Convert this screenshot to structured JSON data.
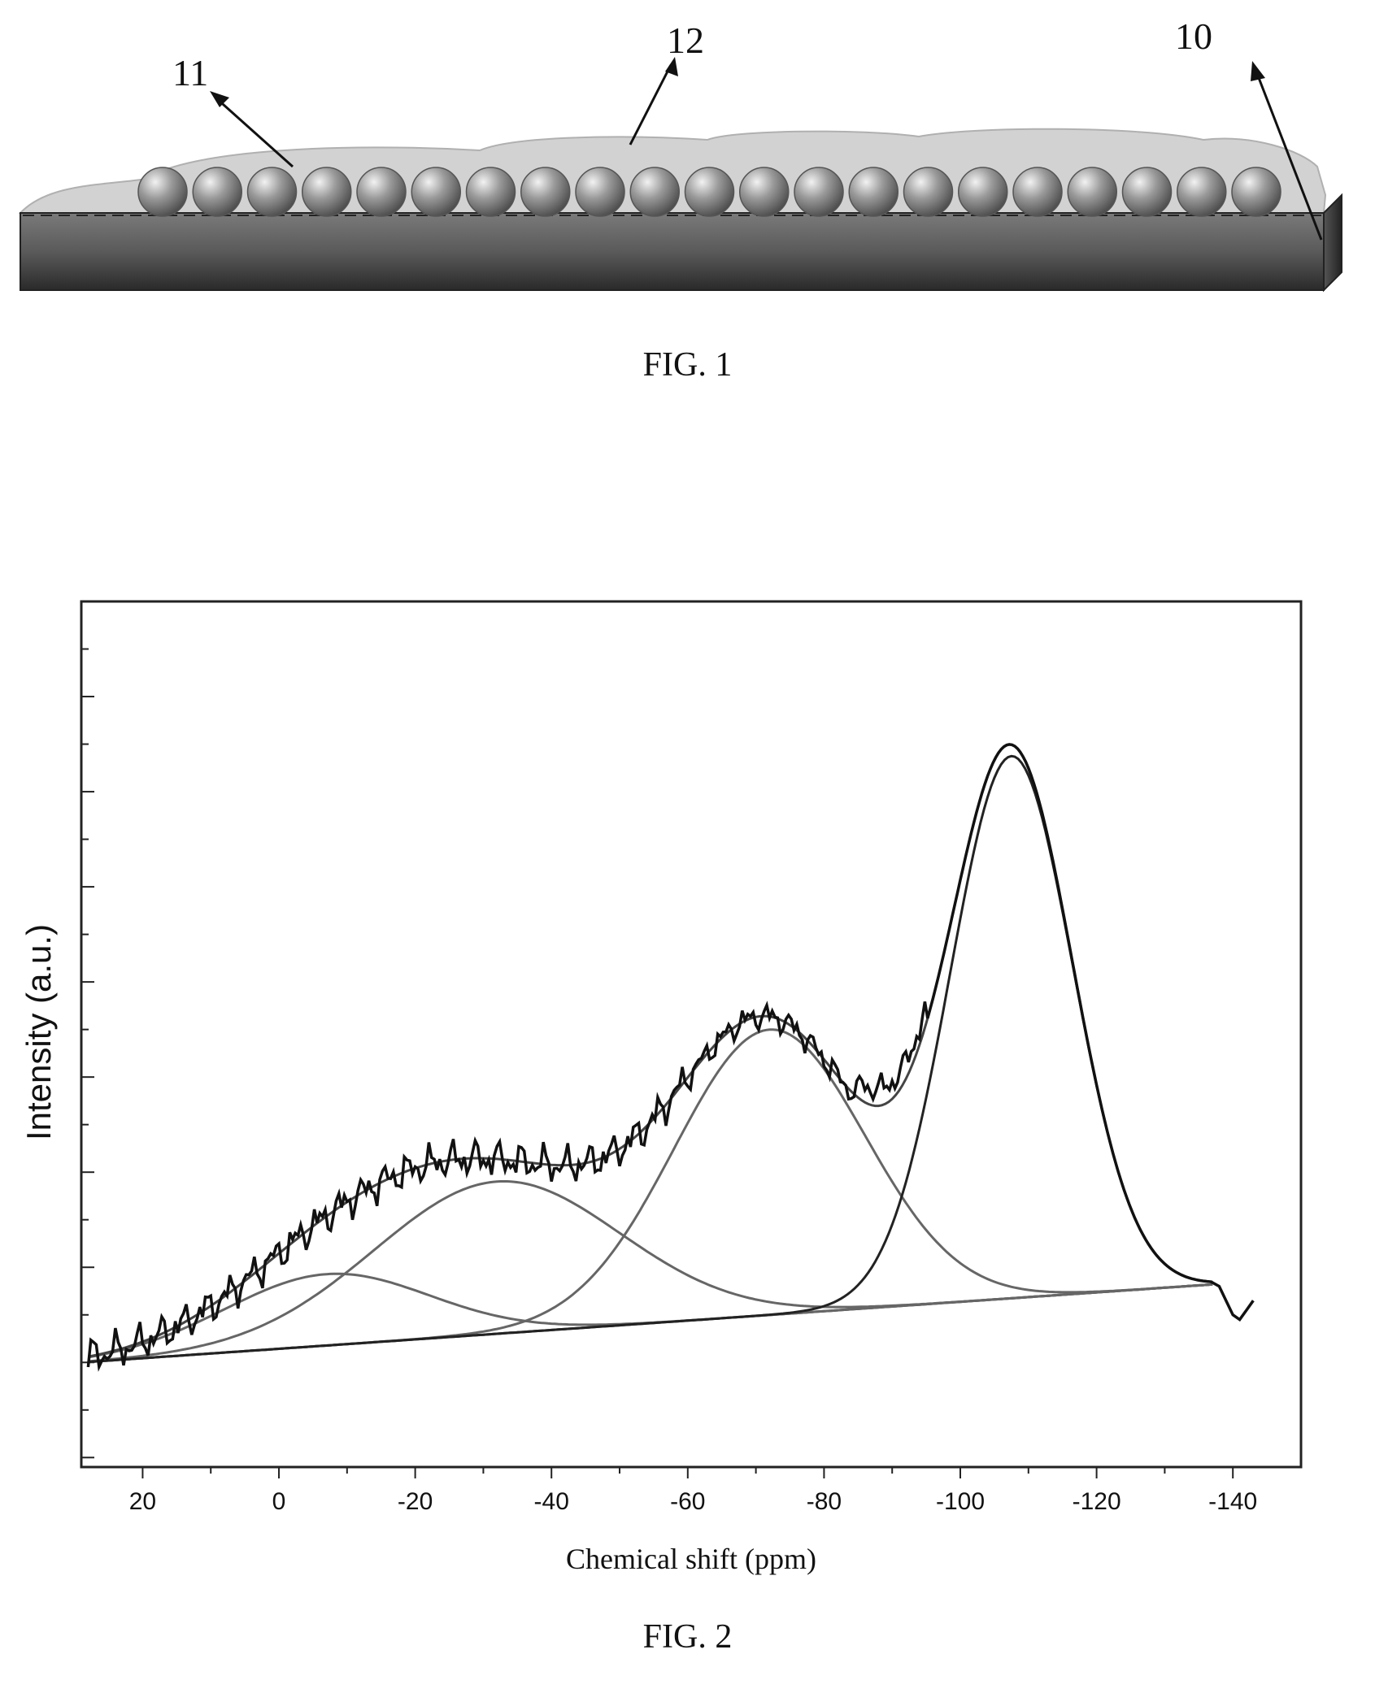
{
  "figure1": {
    "caption": "FIG. 1",
    "reference_labels": [
      "11",
      "12",
      "10"
    ],
    "sphere_count": 21
  },
  "figure2": {
    "caption": "FIG. 2"
  },
  "chart_data": {
    "type": "line",
    "title": "",
    "xlabel": "Chemical shift (ppm)",
    "ylabel": "Intensity (a.u.)",
    "xlim": [
      29,
      -150
    ],
    "ylim": [
      -1.1,
      8.0
    ],
    "x_ticks": [
      20,
      0,
      -20,
      -40,
      -60,
      -80,
      -100,
      -120,
      -140
    ],
    "x_tick_labels": [
      "20",
      "0",
      "-20",
      "-40",
      "-60",
      "-80",
      "-100",
      "-120",
      "-140"
    ],
    "baseline": {
      "x": [
        29,
        -137
      ],
      "y": [
        0,
        0.82
      ]
    },
    "fitted_peaks": [
      {
        "center": -7,
        "height": 0.75,
        "width": 15
      },
      {
        "center": -32,
        "height": 1.6,
        "width": 18
      },
      {
        "center": -72,
        "height": 3.0,
        "width": 14
      },
      {
        "center": -107.5,
        "height": 5.7,
        "width": 9
      }
    ],
    "experimental_max": {
      "x": -107.5,
      "y": 7.3
    }
  }
}
